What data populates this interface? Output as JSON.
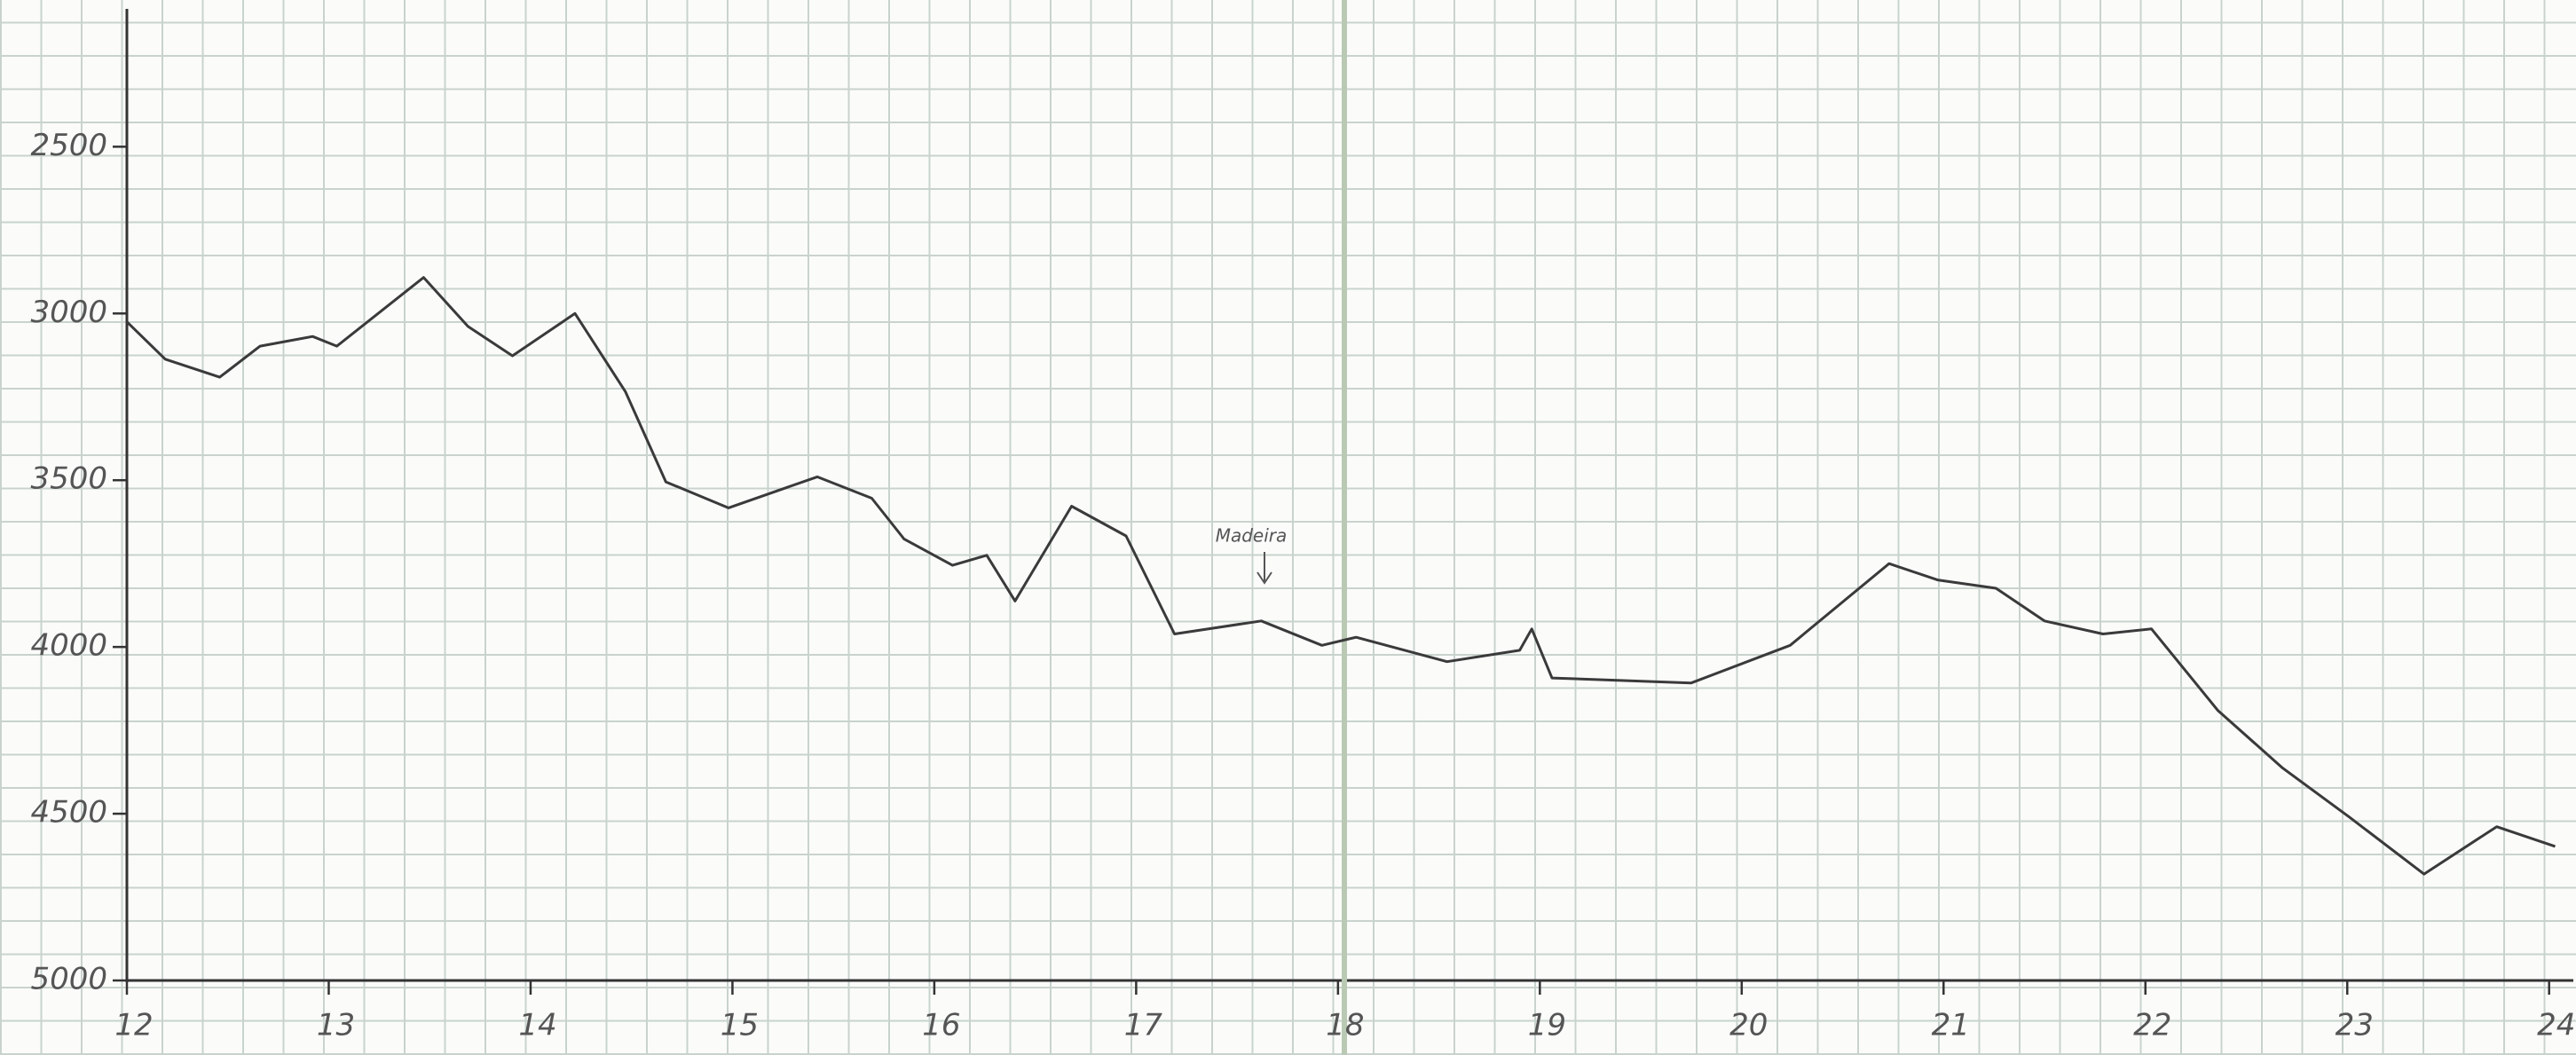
{
  "chart_data": {
    "type": "line",
    "annotation": "Madeira",
    "x": [
      12.0,
      12.19,
      12.46,
      12.66,
      12.92,
      13.04,
      13.47,
      13.69,
      13.91,
      14.22,
      14.47,
      14.67,
      14.98,
      15.42,
      15.69,
      15.85,
      16.09,
      16.26,
      16.4,
      16.68,
      16.95,
      17.19,
      17.62,
      17.92,
      18.09,
      18.54,
      18.9,
      18.96,
      19.06,
      19.75,
      20.24,
      20.73,
      20.97,
      21.26,
      21.5,
      21.79,
      22.03,
      22.36,
      22.68,
      23.01,
      23.38,
      23.74,
      24.03
    ],
    "series": [
      {
        "color": "#3a3a3a",
        "values": [
          3025,
          3137,
          3191,
          3098,
          3069,
          3098,
          2892,
          3039,
          3127,
          3000,
          3235,
          3505,
          3583,
          3490,
          3554,
          3676,
          3755,
          3725,
          3862,
          3578,
          3667,
          3961,
          3922,
          3995,
          3971,
          4044,
          4010,
          3946,
          4093,
          4108,
          3995,
          3750,
          3799,
          3824,
          3922,
          3961,
          3946,
          4191,
          4363,
          4510,
          4681,
          4539,
          4598
        ]
      }
    ],
    "xlim": [
      12,
      24.12
    ],
    "ylim": [
      5000,
      2100
    ],
    "xticks": [
      12,
      13,
      14,
      15,
      16,
      17,
      18,
      19,
      20,
      21,
      22,
      23,
      24
    ],
    "yticks": [
      2500,
      3000,
      3500,
      4000,
      4500,
      5000
    ]
  }
}
